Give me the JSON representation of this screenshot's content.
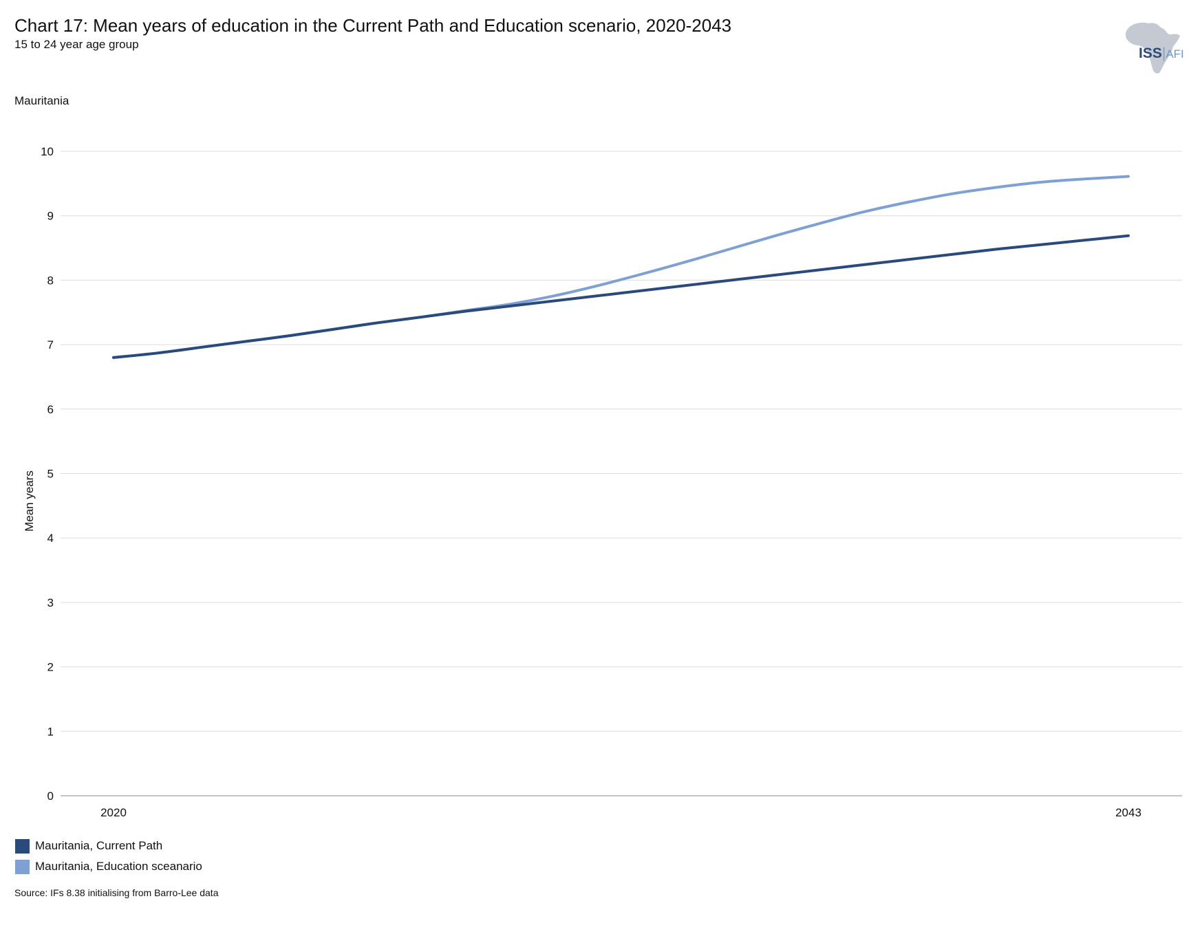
{
  "header": {
    "title": "Chart 17: Mean years of education in the Current Path and Education scenario, 2020-2043",
    "subtitle": "15 to 24 year age group",
    "region": "Mauritania"
  },
  "logo": {
    "iss": "ISS",
    "separator": "|",
    "afi": "AFI",
    "iss_color": "#2b4a7c",
    "afi_color": "#6f97cf",
    "map_color": "#c5cad2"
  },
  "chart_data": {
    "type": "line",
    "title": "Chart 17: Mean years of education in the Current Path and Education scenario, 2020-2043",
    "subtitle": "15 to 24 year age group",
    "xlabel": "",
    "ylabel": "Mean years",
    "xlim": [
      2020,
      2043
    ],
    "ylim": [
      0,
      10
    ],
    "x_ticks": [
      2020,
      2043
    ],
    "y_ticks": [
      0,
      1,
      2,
      3,
      4,
      5,
      6,
      7,
      8,
      9,
      10
    ],
    "grid": true,
    "legend_position": "bottom-left",
    "x": [
      2020,
      2021,
      2022,
      2023,
      2024,
      2025,
      2026,
      2027,
      2028,
      2029,
      2030,
      2031,
      2032,
      2033,
      2034,
      2035,
      2036,
      2037,
      2038,
      2039,
      2040,
      2041,
      2042,
      2043
    ],
    "series": [
      {
        "name": "Mauritania, Current Path",
        "color": "#2b4a7c",
        "values": [
          6.8,
          6.87,
          6.96,
          7.05,
          7.14,
          7.24,
          7.34,
          7.43,
          7.52,
          7.6,
          7.68,
          7.76,
          7.84,
          7.92,
          8.0,
          8.08,
          8.16,
          8.24,
          8.32,
          8.4,
          8.48,
          8.55,
          8.62,
          8.69
        ]
      },
      {
        "name": "Mauritania, Education sceanario",
        "color": "#7ea0d2",
        "values": [
          6.8,
          6.87,
          6.96,
          7.05,
          7.14,
          7.24,
          7.34,
          7.43,
          7.53,
          7.63,
          7.76,
          7.92,
          8.1,
          8.29,
          8.49,
          8.69,
          8.88,
          9.06,
          9.21,
          9.34,
          9.44,
          9.52,
          9.57,
          9.61
        ]
      }
    ]
  },
  "legend": {
    "items": [
      {
        "label": "Mauritania, Current Path",
        "color": "#2b4a7c"
      },
      {
        "label": "Mauritania, Education sceanario",
        "color": "#7ea0d2"
      }
    ]
  },
  "footer": {
    "source": "Source: IFs 8.38 initialising from Barro-Lee data"
  }
}
